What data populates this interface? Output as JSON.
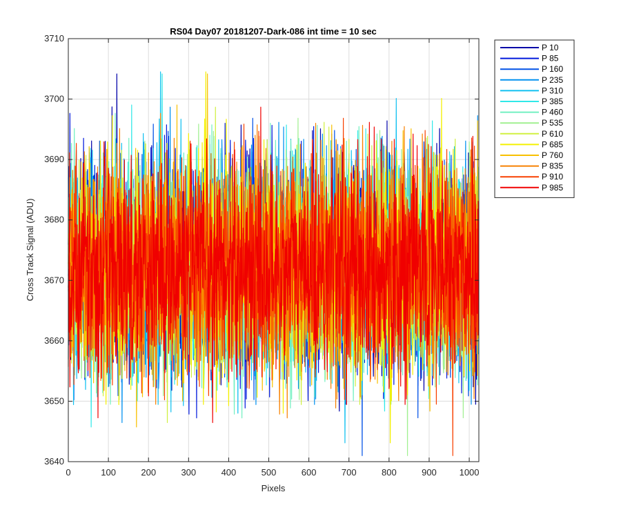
{
  "chart_data": {
    "type": "line",
    "title": "RS04 Day07 20181207-Dark-086 int time = 10 sec",
    "xlabel": "Pixels",
    "ylabel": "Cross Track Signal (ADU)",
    "xlim": [
      0,
      1024
    ],
    "ylim": [
      3640,
      3710
    ],
    "grid": true,
    "legend_position": "outside-top-right",
    "x_ticks": [
      "0",
      "100",
      "200",
      "300",
      "400",
      "500",
      "600",
      "700",
      "800",
      "900",
      "1000"
    ],
    "y_ticks": [
      "3640",
      "3650",
      "3660",
      "3670",
      "3680",
      "3690",
      "3700",
      "3710"
    ],
    "x_tick_values": [
      0,
      100,
      200,
      300,
      400,
      500,
      600,
      700,
      800,
      900,
      1000
    ],
    "y_tick_values": [
      3640,
      3650,
      3660,
      3670,
      3680,
      3690,
      3700,
      3710
    ],
    "n_points": 1024,
    "series_mean": 3672,
    "series_spread": 8.5,
    "series": [
      {
        "name": "P 10",
        "color": "#0000a8"
      },
      {
        "name": "P 85",
        "color": "#0018dc"
      },
      {
        "name": "P 160",
        "color": "#0050e6"
      },
      {
        "name": "P 235",
        "color": "#0090f0"
      },
      {
        "name": "P 310",
        "color": "#10c0f0"
      },
      {
        "name": "P 385",
        "color": "#30e8e8"
      },
      {
        "name": "P 460",
        "color": "#70f0c0"
      },
      {
        "name": "P 535",
        "color": "#a0f090"
      },
      {
        "name": "P 610",
        "color": "#d0f040"
      },
      {
        "name": "P 685",
        "color": "#f4f000"
      },
      {
        "name": "P 760",
        "color": "#f8c000"
      },
      {
        "name": "P 835",
        "color": "#f88000"
      },
      {
        "name": "P 910",
        "color": "#f84000"
      },
      {
        "name": "P 985",
        "color": "#f00000"
      }
    ]
  }
}
